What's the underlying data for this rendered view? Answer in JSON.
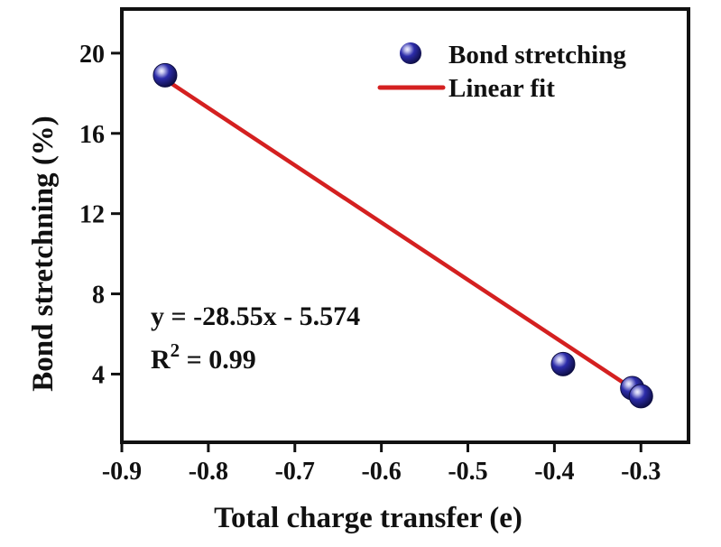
{
  "chart_data": {
    "type": "scatter",
    "title": "",
    "xlabel": "Total charge transfer (e)",
    "ylabel": "Bond stretchning (%)",
    "xlim": [
      -0.9,
      -0.245
    ],
    "ylim": [
      0.6,
      22.2
    ],
    "grid": false,
    "xticks": [
      {
        "v": -0.9,
        "label": "-0.9"
      },
      {
        "v": -0.8,
        "label": "-0.8"
      },
      {
        "v": -0.7,
        "label": "-0.7"
      },
      {
        "v": -0.6,
        "label": "-0.6"
      },
      {
        "v": -0.5,
        "label": "-0.5"
      },
      {
        "v": -0.4,
        "label": "-0.4"
      },
      {
        "v": -0.3,
        "label": "-0.3"
      }
    ],
    "yticks": [
      {
        "v": 20,
        "label": "20"
      },
      {
        "v": 16,
        "label": "16"
      },
      {
        "v": 12,
        "label": "12"
      },
      {
        "v": 8,
        "label": "8"
      },
      {
        "v": 4,
        "label": "4"
      }
    ],
    "series": [
      {
        "name": "Bond stretching",
        "type": "scatter",
        "marker": "sphere",
        "points": [
          {
            "x": -0.85,
            "y": 18.9
          },
          {
            "x": -0.39,
            "y": 4.5
          },
          {
            "x": -0.31,
            "y": 3.3
          },
          {
            "x": -0.3,
            "y": 2.9
          }
        ]
      },
      {
        "name": "Linear fit",
        "type": "line",
        "slope": -28.55,
        "intercept": -5.574,
        "x_start": -0.85,
        "x_end": -0.295
      }
    ],
    "legend": {
      "position": "top-right",
      "items": [
        {
          "label": "Bond stretching",
          "marker": "sphere"
        },
        {
          "label": "Linear fit",
          "marker": "line"
        }
      ]
    },
    "annotation": {
      "equation": "y = -28.55x - 5.574",
      "r2_base": "R",
      "r2_sup": "2",
      "r2_rest": " = 0.99"
    },
    "colors": {
      "marker_fill": "#1c1c96",
      "marker_edge": "#0d0d42",
      "marker_highlight": "#f2f2ff",
      "fit_line": "#d42020",
      "text": "#111111",
      "frame": "#111111",
      "background": "#ffffff"
    }
  }
}
